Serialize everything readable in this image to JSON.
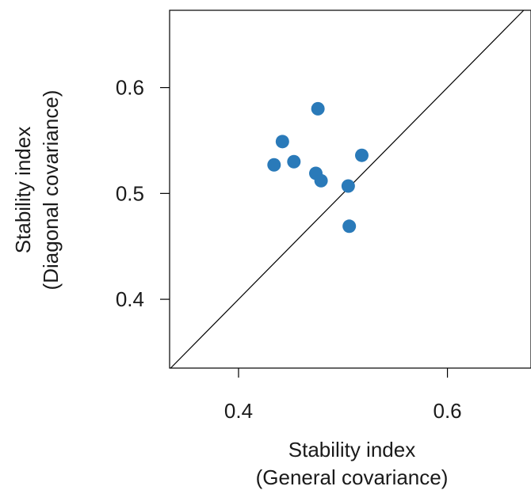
{
  "chart_data": {
    "type": "scatter",
    "title": "",
    "xlabel": [
      "Stability index",
      "(General covariance)"
    ],
    "ylabel": [
      "Stability index",
      "(Diagonal covariance)"
    ],
    "xlim": [
      0.334,
      0.68
    ],
    "ylim": [
      0.335,
      0.673
    ],
    "xticks": [
      0.4,
      0.6
    ],
    "yticks": [
      0.4,
      0.5,
      0.6
    ],
    "xtick_labels": [
      "0.4",
      "0.6"
    ],
    "ytick_labels": [
      "0.4",
      "0.5",
      "0.6"
    ],
    "reference_line": "y = x",
    "grid": false,
    "marker_color": "#2a7ab9",
    "series": [
      {
        "x": [
          0.476,
          0.442,
          0.434,
          0.453,
          0.474,
          0.479,
          0.518,
          0.505,
          0.506
        ],
        "y": [
          0.58,
          0.549,
          0.527,
          0.53,
          0.519,
          0.512,
          0.536,
          0.507,
          0.469
        ]
      }
    ]
  }
}
